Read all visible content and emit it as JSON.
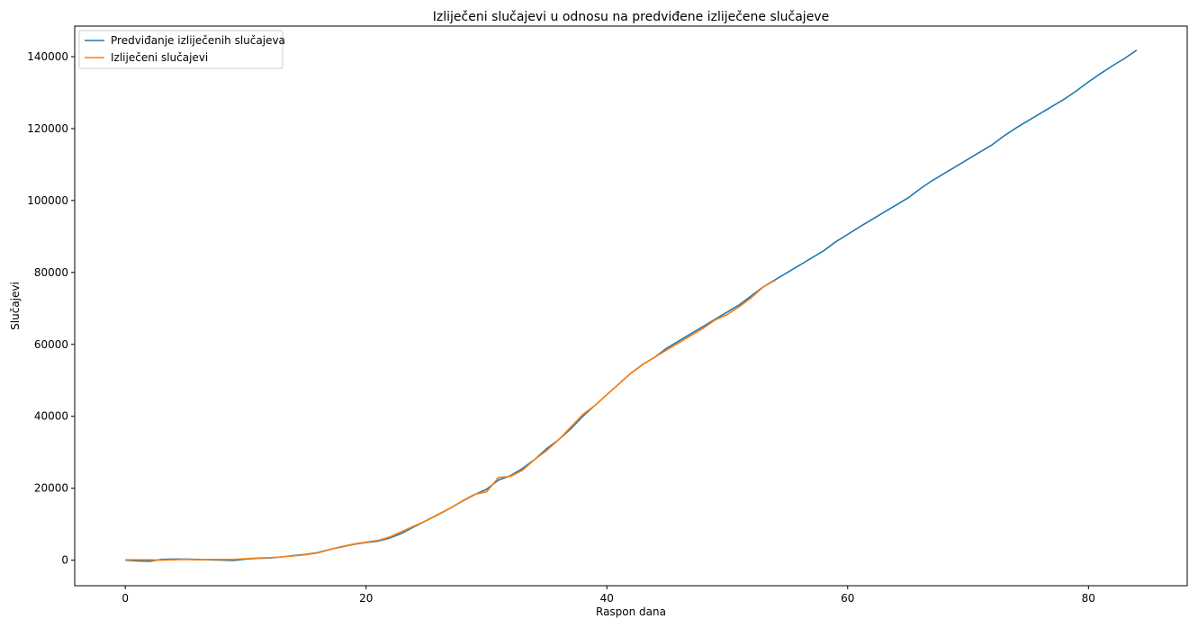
{
  "chart_data": {
    "type": "line",
    "title": "Izliječeni slučajevi u odnosu na predviđene izliječene slučajeve",
    "xlabel": "Raspon dana",
    "ylabel": "Slučajevi",
    "xlim": [
      -4.2,
      88.2
    ],
    "ylim": [
      -7100,
      148500
    ],
    "xticks": [
      0,
      20,
      40,
      60,
      80
    ],
    "yticks": [
      0,
      20000,
      40000,
      60000,
      80000,
      100000,
      120000,
      140000
    ],
    "grid": false,
    "legend_position": "top-left",
    "series": [
      {
        "name": "Predviđanje izliječenih slučajeva",
        "color": "#1f77b4",
        "x": [
          0,
          1,
          2,
          3,
          4,
          5,
          6,
          7,
          8,
          9,
          10,
          11,
          12,
          13,
          14,
          15,
          16,
          17,
          18,
          19,
          20,
          21,
          22,
          23,
          24,
          25,
          26,
          27,
          28,
          29,
          30,
          31,
          32,
          33,
          34,
          35,
          36,
          37,
          38,
          39,
          40,
          41,
          42,
          43,
          44,
          45,
          46,
          47,
          48,
          49,
          50,
          51,
          52,
          53,
          54,
          55,
          56,
          57,
          58,
          59,
          60,
          61,
          62,
          63,
          64,
          65,
          66,
          67,
          68,
          69,
          70,
          71,
          72,
          73,
          74,
          75,
          76,
          77,
          78,
          79,
          80,
          81,
          82,
          83,
          84
        ],
        "y": [
          0,
          -200,
          -300,
          200,
          300,
          300,
          200,
          100,
          0,
          -100,
          300,
          500,
          600,
          900,
          1300,
          1600,
          2100,
          3000,
          3700,
          4400,
          4900,
          5300,
          6200,
          7500,
          9300,
          11000,
          12700,
          14500,
          16400,
          18200,
          19700,
          22300,
          23500,
          25500,
          28000,
          31000,
          33500,
          36500,
          40000,
          43000,
          46000,
          49000,
          52000,
          54500,
          56500,
          59000,
          61000,
          63000,
          65000,
          67000,
          69000,
          71000,
          73500,
          76000,
          78000,
          80000,
          82000,
          84000,
          86000,
          88500,
          90600,
          92700,
          94700,
          96700,
          98700,
          100700,
          103200,
          105500,
          107500,
          109500,
          111500,
          113500,
          115500,
          118000,
          120200,
          122200,
          124200,
          126200,
          128200,
          130500,
          133000,
          135300,
          137500,
          139500,
          141800
        ]
      },
      {
        "name": "Izliječeni slučajevi",
        "color": "#ff7f0e",
        "x": [
          0,
          1,
          2,
          3,
          4,
          5,
          6,
          7,
          8,
          9,
          10,
          11,
          12,
          13,
          14,
          15,
          16,
          17,
          18,
          19,
          20,
          21,
          22,
          23,
          24,
          25,
          26,
          27,
          28,
          29,
          30,
          31,
          32,
          33,
          34,
          35,
          36,
          37,
          38,
          39,
          40,
          41,
          42,
          43,
          44,
          45,
          46,
          47,
          48,
          49,
          50,
          51,
          52,
          53,
          54
        ],
        "y": [
          100,
          100,
          100,
          0,
          100,
          200,
          100,
          200,
          200,
          200,
          400,
          600,
          700,
          900,
          1200,
          1500,
          2000,
          3000,
          3800,
          4500,
          5000,
          5500,
          6500,
          8000,
          9500,
          11000,
          12800,
          14500,
          16500,
          18300,
          19000,
          23000,
          23300,
          25000,
          28000,
          30500,
          33500,
          37000,
          40500,
          43000,
          46000,
          49000,
          52000,
          54500,
          56500,
          58500,
          60500,
          62500,
          64500,
          66800,
          68300,
          70500,
          73000,
          76000,
          77800
        ]
      }
    ]
  }
}
